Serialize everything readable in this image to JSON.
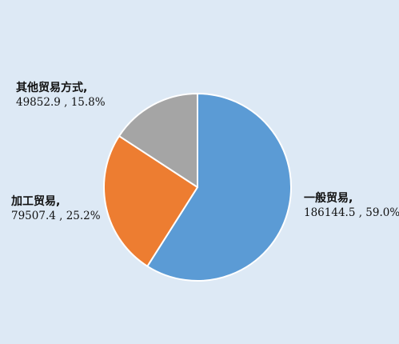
{
  "chart_data": {
    "type": "pie",
    "title": "",
    "start_angle_deg": 0,
    "direction": "clockwise",
    "slices": [
      {
        "label": "一般贸易,",
        "value": 186144.5,
        "percent": "59.0%",
        "value_text": "186144.5 , 59.0%",
        "color": "#5b9bd5"
      },
      {
        "label": "加工贸易,",
        "value": 79507.4,
        "percent": "25.2%",
        "value_text": "79507.4 , 25.2%",
        "color": "#ed7d31"
      },
      {
        "label": "其他贸易方式,",
        "value": 49852.9,
        "percent": "15.8%",
        "value_text": "49852.9 , 15.8%",
        "color": "#a5a5a5"
      }
    ]
  },
  "colors": {
    "background": "#dde9f5",
    "slice_border": "#ffffff"
  }
}
